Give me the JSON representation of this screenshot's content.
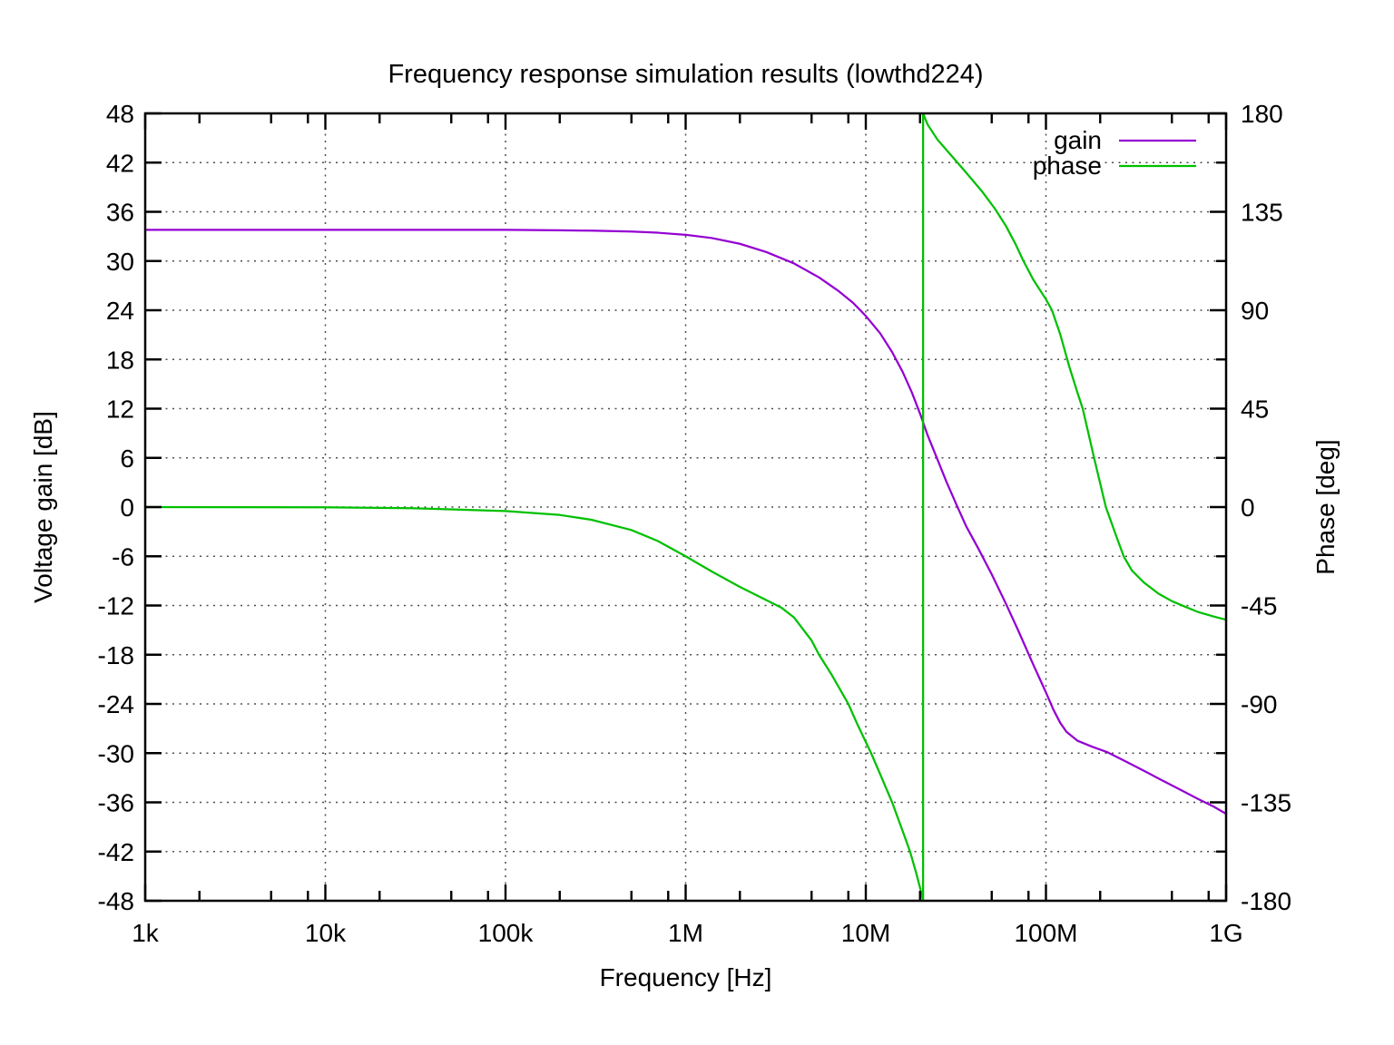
{
  "chart_data": {
    "type": "line",
    "title": "Frequency response simulation results (lowthd224)",
    "xlabel": "Frequency [Hz]",
    "ylabel_left": "Voltage gain [dB]",
    "ylabel_right": "Phase [deg]",
    "x_scale": "log",
    "x_range": [
      1000,
      1000000000
    ],
    "x_ticks": [
      {
        "value": 1000,
        "label": "1k"
      },
      {
        "value": 10000,
        "label": "10k"
      },
      {
        "value": 100000,
        "label": "100k"
      },
      {
        "value": 1000000,
        "label": "1M"
      },
      {
        "value": 10000000,
        "label": "10M"
      },
      {
        "value": 100000000,
        "label": "100M"
      },
      {
        "value": 1000000000,
        "label": "1G"
      }
    ],
    "x_minor_multipliers": [
      2,
      5,
      8
    ],
    "y_left": {
      "range": [
        -48,
        48
      ],
      "tick_step": 6,
      "tick_labels": [
        "-48",
        "-42",
        "-36",
        "-30",
        "-24",
        "-18",
        "-12",
        "-6",
        "0",
        "6",
        "12",
        "18",
        "24",
        "30",
        "36",
        "42",
        "48"
      ]
    },
    "y_right": {
      "range": [
        -180,
        180
      ],
      "tick_step": 45,
      "minor_step": 22.5,
      "tick_labels": [
        "-180",
        "-135",
        "-90",
        "-45",
        "0",
        "45",
        "90",
        "135",
        "180"
      ]
    },
    "grid": true,
    "legend_position": "top-right",
    "series": [
      {
        "name": "gain",
        "axis": "left",
        "color": "#9400d3",
        "points": [
          [
            1000,
            33.8
          ],
          [
            10000,
            33.8
          ],
          [
            100000,
            33.8
          ],
          [
            200000,
            33.75
          ],
          [
            300000,
            33.7
          ],
          [
            500000,
            33.6
          ],
          [
            700000,
            33.45
          ],
          [
            1000000,
            33.2
          ],
          [
            1400000,
            32.8
          ],
          [
            2000000,
            32.1
          ],
          [
            2800000,
            31.1
          ],
          [
            4000000,
            29.7
          ],
          [
            5500000,
            28.0
          ],
          [
            7000000,
            26.4
          ],
          [
            8500000,
            24.9
          ],
          [
            10000000,
            23.3
          ],
          [
            12000000,
            21.2
          ],
          [
            14000000,
            18.9
          ],
          [
            16000000,
            16.5
          ],
          [
            18000000,
            14.0
          ],
          [
            20000000,
            11.4
          ],
          [
            22000000,
            8.8
          ],
          [
            25000000,
            5.8
          ],
          [
            28000000,
            3.1
          ],
          [
            32000000,
            0.2
          ],
          [
            36000000,
            -2.3
          ],
          [
            42000000,
            -5.0
          ],
          [
            50000000,
            -8.2
          ],
          [
            60000000,
            -11.8
          ],
          [
            70000000,
            -15.0
          ],
          [
            85000000,
            -19.2
          ],
          [
            100000000,
            -22.6
          ],
          [
            110000000,
            -24.7
          ],
          [
            120000000,
            -26.3
          ],
          [
            130000000,
            -27.4
          ],
          [
            150000000,
            -28.5
          ],
          [
            180000000,
            -29.2
          ],
          [
            220000000,
            -29.9
          ],
          [
            260000000,
            -30.7
          ],
          [
            300000000,
            -31.4
          ],
          [
            360000000,
            -32.3
          ],
          [
            440000000,
            -33.3
          ],
          [
            550000000,
            -34.4
          ],
          [
            700000000,
            -35.6
          ],
          [
            850000000,
            -36.5
          ],
          [
            1000000000,
            -37.4
          ]
        ]
      },
      {
        "name": "phase",
        "axis": "right",
        "color": "#00c000",
        "points": [
          [
            1000,
            0
          ],
          [
            10000,
            -0.1
          ],
          [
            30000,
            -0.5
          ],
          [
            100000,
            -1.8
          ],
          [
            200000,
            -3.6
          ],
          [
            300000,
            -5.8
          ],
          [
            500000,
            -10.5
          ],
          [
            700000,
            -15.5
          ],
          [
            1000000,
            -22.5
          ],
          [
            1400000,
            -29.5
          ],
          [
            2000000,
            -36.5
          ],
          [
            2800000,
            -42.5
          ],
          [
            3400000,
            -46
          ],
          [
            4000000,
            -50.5
          ],
          [
            5000000,
            -61
          ],
          [
            5500000,
            -67.5
          ],
          [
            6500000,
            -77
          ],
          [
            8000000,
            -90
          ],
          [
            9000000,
            -99.5
          ],
          [
            10700000,
            -112.5
          ],
          [
            12000000,
            -122
          ],
          [
            14000000,
            -135
          ],
          [
            16000000,
            -148
          ],
          [
            17600000,
            -157.5
          ],
          [
            19000000,
            -167
          ],
          [
            20000000,
            -174
          ],
          [
            20800000,
            -180
          ],
          [
            20800000,
            180
          ],
          [
            22000000,
            175
          ],
          [
            25000000,
            168
          ],
          [
            30000000,
            160.5
          ],
          [
            36000000,
            153
          ],
          [
            44000000,
            144.5
          ],
          [
            52000000,
            136.5
          ],
          [
            60000000,
            128.5
          ],
          [
            68000000,
            120
          ],
          [
            75000000,
            112.5
          ],
          [
            85000000,
            104
          ],
          [
            100000000,
            95
          ],
          [
            108000000,
            90
          ],
          [
            120000000,
            79
          ],
          [
            135000000,
            64
          ],
          [
            150000000,
            52
          ],
          [
            160000000,
            45
          ],
          [
            185000000,
            22.5
          ],
          [
            215000000,
            0
          ],
          [
            245000000,
            -13
          ],
          [
            270000000,
            -22.5
          ],
          [
            300000000,
            -29
          ],
          [
            350000000,
            -34.5
          ],
          [
            420000000,
            -39.5
          ],
          [
            500000000,
            -43
          ],
          [
            590000000,
            -45.5
          ],
          [
            700000000,
            -48
          ],
          [
            850000000,
            -50
          ],
          [
            1000000000,
            -51.5
          ]
        ]
      }
    ],
    "style": {
      "background": "#ffffff",
      "border_color": "#000000",
      "grid_color": "#4d4d4d",
      "text_color": "#000000"
    }
  }
}
